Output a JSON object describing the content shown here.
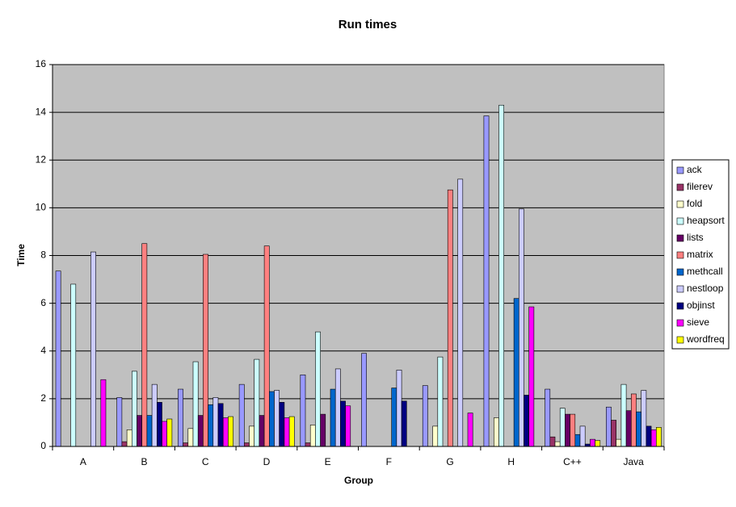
{
  "chart_data": {
    "type": "bar",
    "title": "Run times",
    "x_label": "Group",
    "y_label": "Time",
    "categories": [
      "A",
      "B",
      "C",
      "D",
      "E",
      "F",
      "G",
      "H",
      "C++",
      "Java"
    ],
    "series": [
      {
        "name": "ack",
        "color": "#9999ff",
        "values": [
          7.35,
          2.05,
          2.4,
          2.6,
          3.0,
          3.9,
          2.55,
          13.85,
          2.4,
          1.65
        ]
      },
      {
        "name": "filerev",
        "color": "#993366",
        "values": [
          0,
          0.2,
          0.15,
          0.15,
          0.15,
          0,
          0,
          0,
          0.4,
          1.1
        ]
      },
      {
        "name": "fold",
        "color": "#ffffcc",
        "values": [
          0,
          0.7,
          0.75,
          0.85,
          0.9,
          0,
          0.85,
          1.2,
          0.2,
          0.3
        ]
      },
      {
        "name": "heapsort",
        "color": "#ccffff",
        "values": [
          6.8,
          3.15,
          3.55,
          3.65,
          4.8,
          0,
          3.75,
          14.3,
          1.6,
          2.6
        ]
      },
      {
        "name": "lists",
        "color": "#660066",
        "values": [
          0,
          1.3,
          1.3,
          1.3,
          1.35,
          0,
          0,
          0,
          1.35,
          1.5
        ]
      },
      {
        "name": "matrix",
        "color": "#ff8080",
        "values": [
          0,
          8.5,
          8.05,
          8.4,
          0,
          0,
          10.75,
          0,
          1.35,
          2.2
        ]
      },
      {
        "name": "methcall",
        "color": "#0066cc",
        "values": [
          0,
          1.3,
          1.75,
          2.3,
          2.4,
          2.45,
          0,
          6.2,
          0.5,
          1.45
        ]
      },
      {
        "name": "nestloop",
        "color": "#ccccff",
        "values": [
          8.15,
          2.6,
          2.05,
          2.35,
          3.25,
          3.2,
          11.2,
          9.95,
          0.85,
          2.35
        ]
      },
      {
        "name": "objinst",
        "color": "#000080",
        "values": [
          0,
          1.85,
          1.8,
          1.85,
          1.9,
          1.9,
          0,
          2.15,
          0.1,
          0.85
        ]
      },
      {
        "name": "sieve",
        "color": "#ff00ff",
        "values": [
          2.8,
          1.05,
          1.2,
          1.2,
          1.7,
          0,
          1.4,
          5.85,
          0.3,
          0.7
        ]
      },
      {
        "name": "wordfreq",
        "color": "#ffff00",
        "values": [
          0,
          1.15,
          1.25,
          1.25,
          0,
          0,
          0,
          0,
          0.25,
          0.8
        ]
      }
    ],
    "ylim": [
      0,
      16
    ],
    "yticks": [
      0,
      2,
      4,
      6,
      8,
      10,
      12,
      14,
      16
    ],
    "grid": true,
    "legend": "right",
    "background": "#c0c0c0"
  }
}
